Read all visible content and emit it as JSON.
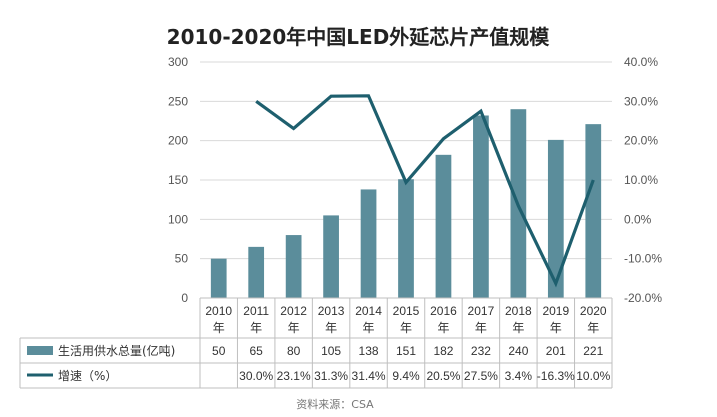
{
  "chart_data": {
    "type": "bar+line",
    "title": "2010-2020年中国LED外延芯片产值规模",
    "categories": [
      [
        "2010",
        "年"
      ],
      [
        "2011",
        "年"
      ],
      [
        "2012",
        "年"
      ],
      [
        "2013",
        "年"
      ],
      [
        "2014",
        "年"
      ],
      [
        "2015",
        "年"
      ],
      [
        "2016",
        "年"
      ],
      [
        "2017",
        "年"
      ],
      [
        "2018",
        "年"
      ],
      [
        "2019",
        "年"
      ],
      [
        "2020",
        "年"
      ]
    ],
    "series": [
      {
        "name": "生活用供水总量(亿吨)",
        "type": "bar",
        "axis": "left",
        "color": "#5b8d9b",
        "values": [
          50,
          65,
          80,
          105,
          138,
          151,
          182,
          232,
          240,
          201,
          221
        ],
        "labels": [
          "50",
          "65",
          "80",
          "105",
          "138",
          "151",
          "182",
          "232",
          "240",
          "201",
          "221"
        ]
      },
      {
        "name": "增速（%）",
        "type": "line",
        "axis": "right",
        "color": "#1e5f6e",
        "values": [
          null,
          30.0,
          23.1,
          31.3,
          31.4,
          9.4,
          20.5,
          27.5,
          3.4,
          -16.3,
          10.0
        ],
        "labels": [
          "",
          "30.0%",
          "23.1%",
          "31.3%",
          "31.4%",
          "9.4%",
          "20.5%",
          "27.5%",
          "3.4%",
          "-16.3%",
          "10.0%"
        ]
      }
    ],
    "y_left": {
      "min": 0,
      "max": 300,
      "ticks": [
        "0",
        "50",
        "100",
        "150",
        "200",
        "250",
        "300"
      ]
    },
    "y_right": {
      "min": -20,
      "max": 40,
      "ticks": [
        "-20.0%",
        "-10.0%",
        "0.0%",
        "10.0%",
        "20.0%",
        "30.0%",
        "40.0%"
      ]
    },
    "grid": true,
    "legend": "data-table"
  },
  "source": "资料来源：CSA"
}
